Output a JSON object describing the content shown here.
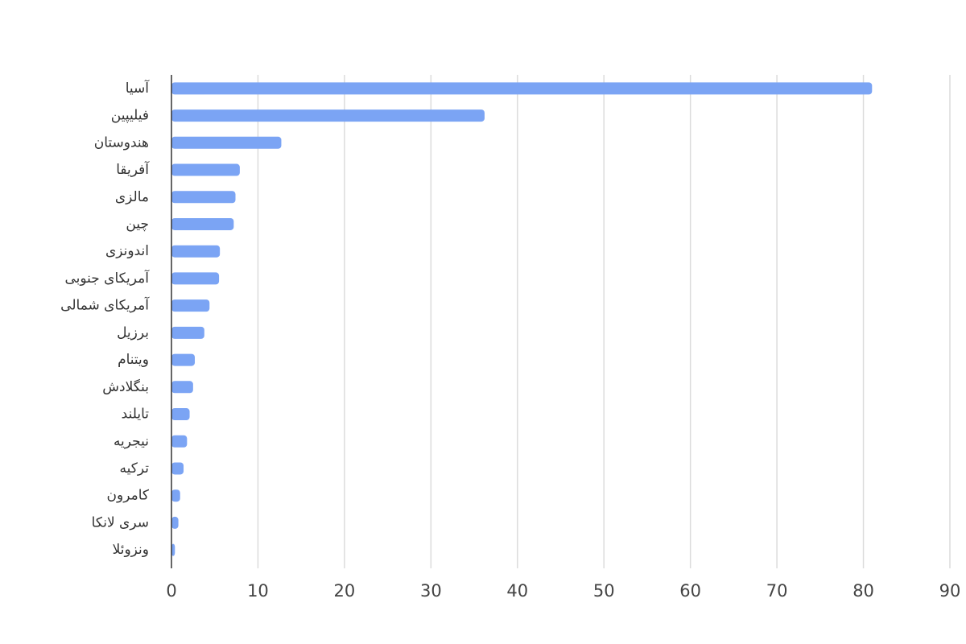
{
  "chart_data": {
    "type": "bar",
    "orientation": "horizontal",
    "categories": [
      "آسیا",
      "فیلیپین",
      "هندوستان",
      "آفریقا",
      "مالزی",
      "چین",
      "اندونزی",
      "آمریکای جنوبی",
      "آمریکای شمالی",
      "برزیل",
      "ویتنام",
      "بنگلادش",
      "تایلند",
      "نیجریه",
      "ترکیه",
      "کامرون",
      "سری لانکا",
      "ونزوئلا"
    ],
    "values": [
      81,
      36.2,
      12.7,
      7.9,
      7.4,
      7.2,
      5.6,
      5.5,
      4.4,
      3.8,
      2.7,
      2.5,
      2.1,
      1.8,
      1.4,
      1.0,
      0.8,
      0.4
    ],
    "color": "#7ba4f4",
    "xlim": [
      0,
      90
    ],
    "xticks": [
      0,
      10,
      20,
      30,
      40,
      50,
      60,
      70,
      80,
      90
    ],
    "grid": true
  }
}
